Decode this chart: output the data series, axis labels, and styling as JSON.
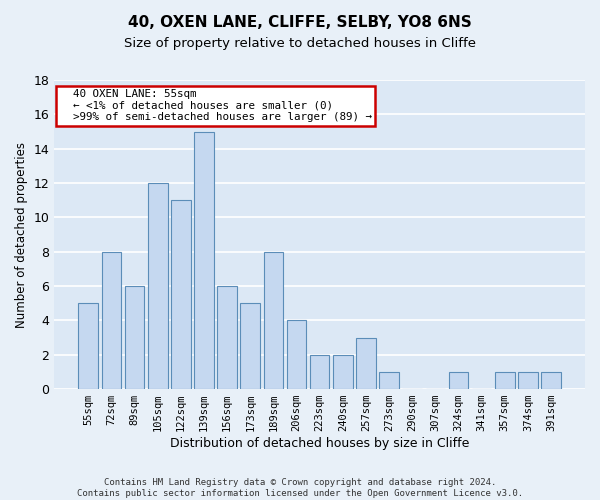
{
  "title": "40, OXEN LANE, CLIFFE, SELBY, YO8 6NS",
  "subtitle": "Size of property relative to detached houses in Cliffe",
  "xlabel": "Distribution of detached houses by size in Cliffe",
  "ylabel": "Number of detached properties",
  "categories": [
    "55sqm",
    "72sqm",
    "89sqm",
    "105sqm",
    "122sqm",
    "139sqm",
    "156sqm",
    "173sqm",
    "189sqm",
    "206sqm",
    "223sqm",
    "240sqm",
    "257sqm",
    "273sqm",
    "290sqm",
    "307sqm",
    "324sqm",
    "341sqm",
    "357sqm",
    "374sqm",
    "391sqm"
  ],
  "values": [
    5,
    8,
    6,
    12,
    11,
    15,
    6,
    5,
    8,
    4,
    2,
    2,
    3,
    1,
    0,
    0,
    1,
    0,
    1,
    1,
    1
  ],
  "bar_color": "#c5d8f0",
  "bar_edge_color": "#5b8db8",
  "highlight_index": 0,
  "annotation_title": "40 OXEN LANE: 55sqm",
  "annotation_line1": "← <1% of detached houses are smaller (0)",
  "annotation_line2": ">99% of semi-detached houses are larger (89) →",
  "ylim": [
    0,
    18
  ],
  "yticks": [
    0,
    2,
    4,
    6,
    8,
    10,
    12,
    14,
    16,
    18
  ],
  "footer1": "Contains HM Land Registry data © Crown copyright and database right 2024.",
  "footer2": "Contains public sector information licensed under the Open Government Licence v3.0.",
  "bg_color": "#e8f0f8",
  "plot_bg_color": "#dce8f5",
  "grid_color": "#ffffff",
  "title_fontsize": 11,
  "subtitle_fontsize": 9.5,
  "annotation_box_color": "#ffffff",
  "annotation_box_edge": "#cc0000"
}
